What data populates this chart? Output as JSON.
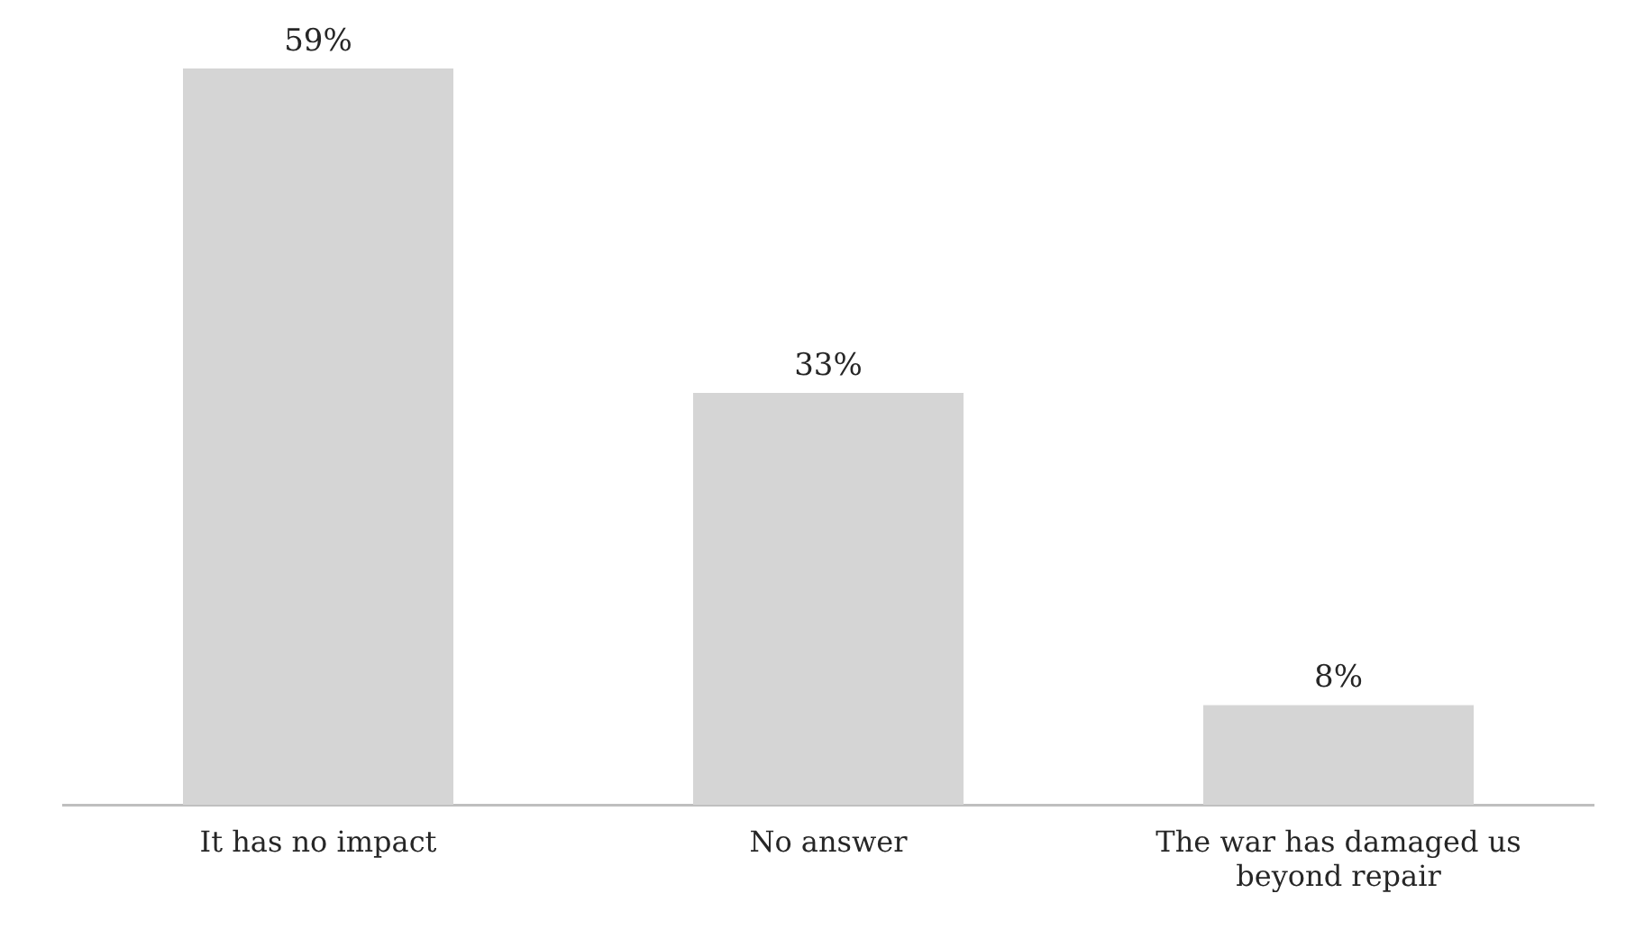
{
  "chart_data": {
    "type": "bar",
    "categories": [
      "It has no impact",
      "No answer",
      "The war has damaged us beyond repair"
    ],
    "values": [
      59,
      33,
      8
    ],
    "value_labels": [
      "59%",
      "33%",
      "8%"
    ],
    "color": "#d5d5d5",
    "grid": false,
    "legend": false
  }
}
